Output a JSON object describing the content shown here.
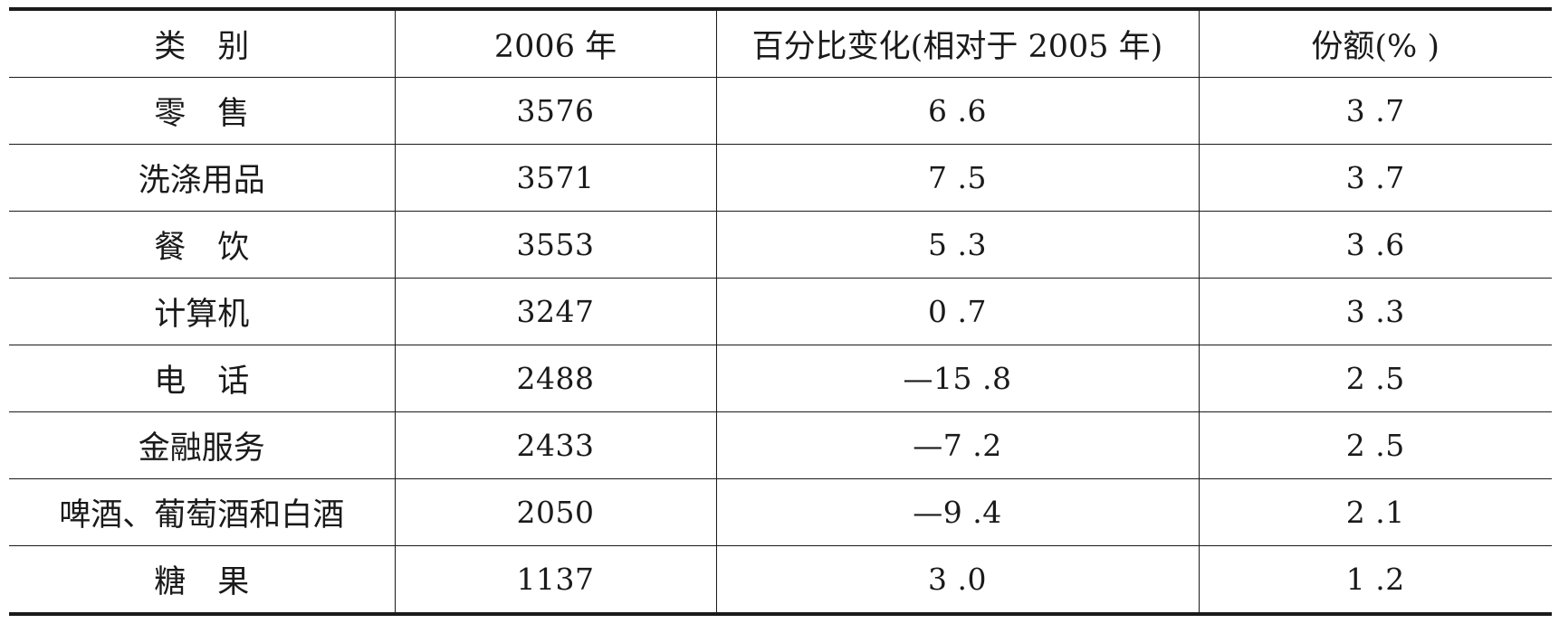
{
  "table": {
    "headers": [
      "类　别",
      "2006 年",
      "百分比变化(相对于 2005 年)",
      "份额(% )"
    ],
    "rows": [
      [
        "零　售",
        "3576",
        "6 .6",
        "3 .7"
      ],
      [
        "洗涤用品",
        "3571",
        "7 .5",
        "3 .7"
      ],
      [
        "餐　饮",
        "3553",
        "5 .3",
        "3 .6"
      ],
      [
        "计算机",
        "3247",
        "0 .7",
        "3 .3"
      ],
      [
        "电　话",
        "2488",
        "—15 .8",
        "2 .5"
      ],
      [
        "金融服务",
        "2433",
        "—7 .2",
        "2 .5"
      ],
      [
        "啤酒、葡萄酒和白酒",
        "2050",
        "—9 .4",
        "2 .1"
      ],
      [
        "糖　果",
        "1137",
        "3 .0",
        "1 .2"
      ]
    ]
  }
}
